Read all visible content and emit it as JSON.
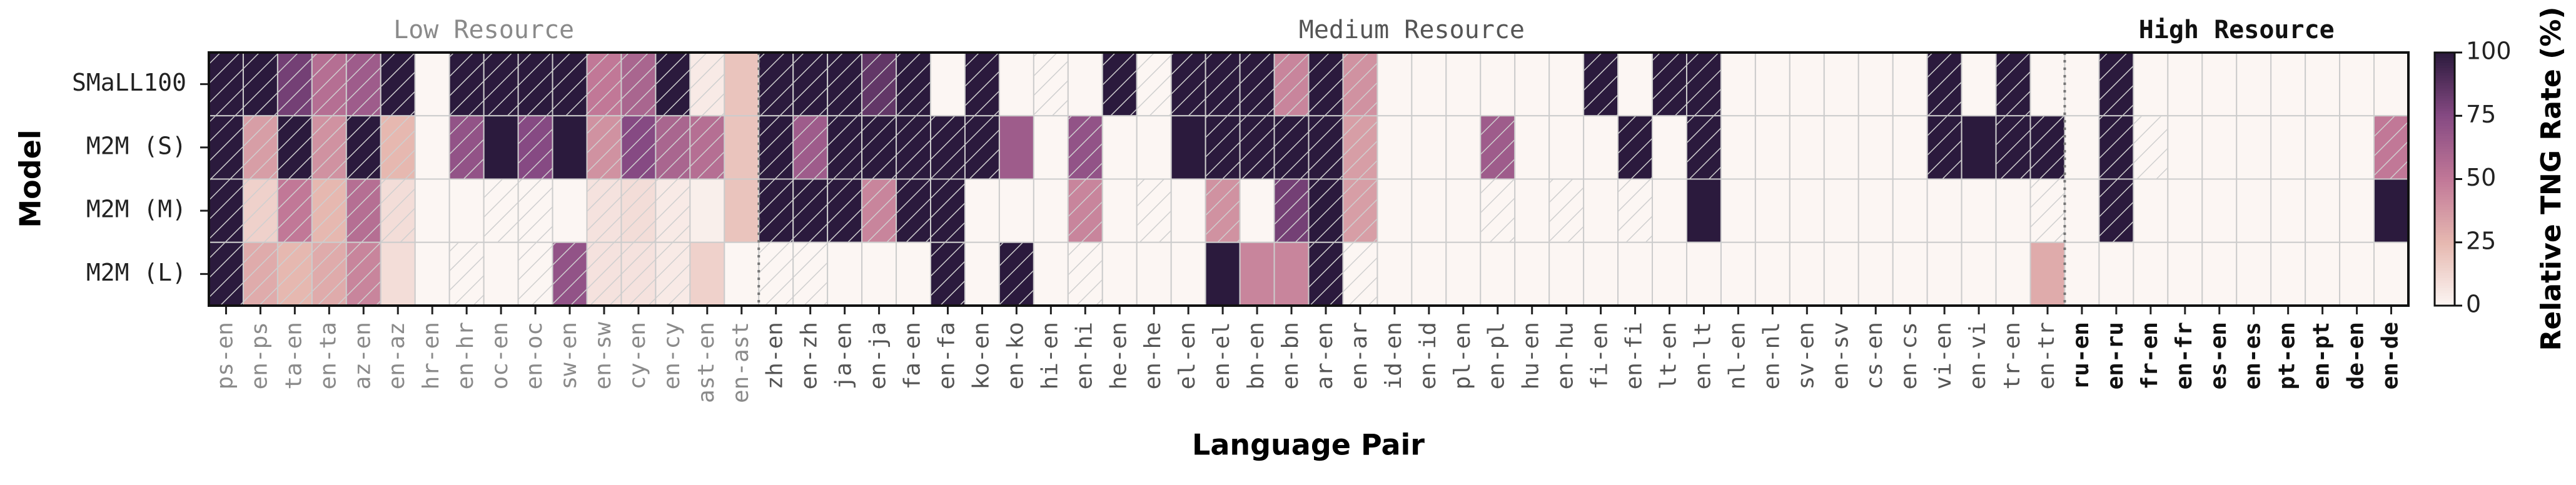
{
  "chart_data": {
    "type": "heatmap",
    "x_label": "Language Pair",
    "y_label": "Model",
    "colorbar_label": "Relative TNG Rate (%)",
    "zlim": [
      0,
      100
    ],
    "zticks": [
      0,
      25,
      50,
      75,
      100
    ],
    "colormap": [
      "#fcf6f3",
      "#e6b8b0",
      "#c17897",
      "#864a83",
      "#2b1a3d"
    ],
    "hatch_color": "#cfcfcf",
    "groups": [
      {
        "name": "Low Resource",
        "color": "#8a8a8a",
        "weight": "normal",
        "categories": [
          "ps-en",
          "en-ps",
          "ta-en",
          "en-ta",
          "az-en",
          "en-az",
          "hr-en",
          "en-hr",
          "oc-en",
          "en-oc",
          "sw-en",
          "en-sw",
          "cy-en",
          "en-cy",
          "ast-en",
          "en-ast"
        ]
      },
      {
        "name": "Medium Resource",
        "color": "#555555",
        "weight": "normal",
        "categories": [
          "zh-en",
          "en-zh",
          "ja-en",
          "en-ja",
          "fa-en",
          "en-fa",
          "ko-en",
          "en-ko",
          "hi-en",
          "en-hi",
          "he-en",
          "en-he",
          "el-en",
          "en-el",
          "bn-en",
          "en-bn",
          "ar-en",
          "en-ar",
          "id-en",
          "en-id",
          "pl-en",
          "en-pl",
          "hu-en",
          "en-hu",
          "fi-en",
          "en-fi",
          "lt-en",
          "en-lt",
          "nl-en",
          "en-nl",
          "sv-en",
          "en-sv",
          "cs-en",
          "en-cs",
          "vi-en",
          "en-vi",
          "tr-en",
          "en-tr"
        ]
      },
      {
        "name": "High Resource",
        "color": "#111111",
        "weight": "bold",
        "categories": [
          "ru-en",
          "en-ru",
          "fr-en",
          "en-fr",
          "es-en",
          "en-es",
          "pt-en",
          "en-pt",
          "de-en",
          "en-de"
        ]
      }
    ],
    "series": [
      {
        "name": "SMaLL100",
        "values": [
          100,
          100,
          80,
          55,
          65,
          100,
          0,
          100,
          100,
          100,
          100,
          50,
          60,
          100,
          5,
          20,
          100,
          100,
          100,
          85,
          100,
          0,
          100,
          0,
          0,
          0,
          100,
          0,
          100,
          100,
          100,
          45,
          100,
          40,
          0,
          0,
          0,
          0,
          0,
          0,
          100,
          0,
          100,
          100,
          0,
          0,
          0,
          0,
          0,
          0,
          100,
          0,
          100,
          0,
          0,
          100,
          0,
          0,
          0,
          0,
          0,
          0,
          0,
          0
        ],
        "hatched": [
          1,
          1,
          1,
          1,
          1,
          1,
          0,
          1,
          1,
          1,
          1,
          1,
          1,
          1,
          1,
          0,
          1,
          1,
          1,
          1,
          1,
          0,
          1,
          0,
          1,
          0,
          1,
          1,
          1,
          1,
          1,
          1,
          1,
          1,
          0,
          0,
          0,
          0,
          0,
          0,
          1,
          0,
          1,
          1,
          0,
          0,
          0,
          0,
          0,
          0,
          1,
          0,
          1,
          0,
          0,
          1,
          0,
          0,
          0,
          0,
          0,
          0,
          0,
          0
        ]
      },
      {
        "name": "M2M (S)",
        "values": [
          100,
          35,
          100,
          40,
          100,
          25,
          0,
          70,
          100,
          75,
          100,
          40,
          75,
          60,
          55,
          20,
          100,
          65,
          100,
          100,
          100,
          100,
          100,
          65,
          0,
          70,
          0,
          0,
          100,
          100,
          100,
          100,
          100,
          35,
          0,
          0,
          0,
          65,
          0,
          0,
          0,
          100,
          0,
          100,
          0,
          0,
          0,
          0,
          0,
          0,
          100,
          100,
          100,
          100,
          0,
          100,
          0,
          0,
          0,
          0,
          0,
          0,
          0,
          50
        ],
        "hatched": [
          1,
          1,
          1,
          1,
          1,
          1,
          0,
          1,
          0,
          1,
          0,
          1,
          1,
          1,
          1,
          0,
          1,
          1,
          1,
          1,
          1,
          1,
          1,
          0,
          0,
          1,
          0,
          0,
          0,
          1,
          1,
          1,
          1,
          1,
          0,
          0,
          0,
          1,
          0,
          0,
          0,
          1,
          0,
          1,
          0,
          0,
          0,
          0,
          0,
          0,
          1,
          0,
          1,
          1,
          0,
          1,
          1,
          0,
          0,
          0,
          0,
          0,
          0,
          1
        ]
      },
      {
        "name": "M2M (M)",
        "values": [
          100,
          15,
          50,
          25,
          55,
          10,
          0,
          0,
          0,
          0,
          0,
          8,
          10,
          5,
          3,
          20,
          100,
          100,
          100,
          45,
          100,
          100,
          0,
          0,
          0,
          45,
          0,
          0,
          0,
          40,
          0,
          80,
          100,
          35,
          0,
          0,
          0,
          0,
          0,
          0,
          0,
          0,
          0,
          100,
          0,
          0,
          0,
          0,
          0,
          0,
          0,
          0,
          0,
          0,
          0,
          100,
          0,
          0,
          0,
          0,
          0,
          0,
          0,
          100
        ],
        "hatched": [
          1,
          1,
          1,
          1,
          1,
          1,
          0,
          0,
          1,
          1,
          0,
          1,
          1,
          1,
          0,
          0,
          1,
          1,
          1,
          1,
          1,
          1,
          0,
          0,
          0,
          1,
          0,
          1,
          0,
          1,
          0,
          1,
          1,
          1,
          0,
          0,
          0,
          1,
          0,
          1,
          0,
          1,
          0,
          0,
          0,
          0,
          0,
          0,
          0,
          0,
          0,
          0,
          0,
          1,
          0,
          1,
          0,
          0,
          0,
          0,
          0,
          0,
          0,
          0
        ]
      },
      {
        "name": "M2M (L)",
        "values": [
          100,
          30,
          25,
          30,
          45,
          10,
          0,
          0,
          0,
          0,
          70,
          8,
          8,
          5,
          15,
          0,
          0,
          0,
          0,
          0,
          0,
          100,
          0,
          100,
          0,
          0,
          0,
          0,
          0,
          100,
          45,
          45,
          100,
          0,
          0,
          0,
          0,
          0,
          0,
          0,
          0,
          0,
          0,
          0,
          0,
          0,
          0,
          0,
          0,
          0,
          0,
          0,
          0,
          30,
          0,
          0,
          0,
          0,
          0,
          0,
          0,
          0,
          0,
          0
        ],
        "hatched": [
          1,
          1,
          1,
          1,
          1,
          0,
          0,
          1,
          0,
          1,
          1,
          1,
          1,
          1,
          0,
          0,
          1,
          1,
          0,
          0,
          0,
          1,
          0,
          1,
          0,
          1,
          0,
          0,
          0,
          0,
          0,
          0,
          1,
          1,
          0,
          0,
          0,
          0,
          0,
          0,
          0,
          0,
          0,
          0,
          0,
          0,
          0,
          0,
          0,
          0,
          0,
          0,
          0,
          0,
          0,
          0,
          0,
          0,
          0,
          0,
          0,
          0,
          0,
          0
        ]
      }
    ]
  }
}
